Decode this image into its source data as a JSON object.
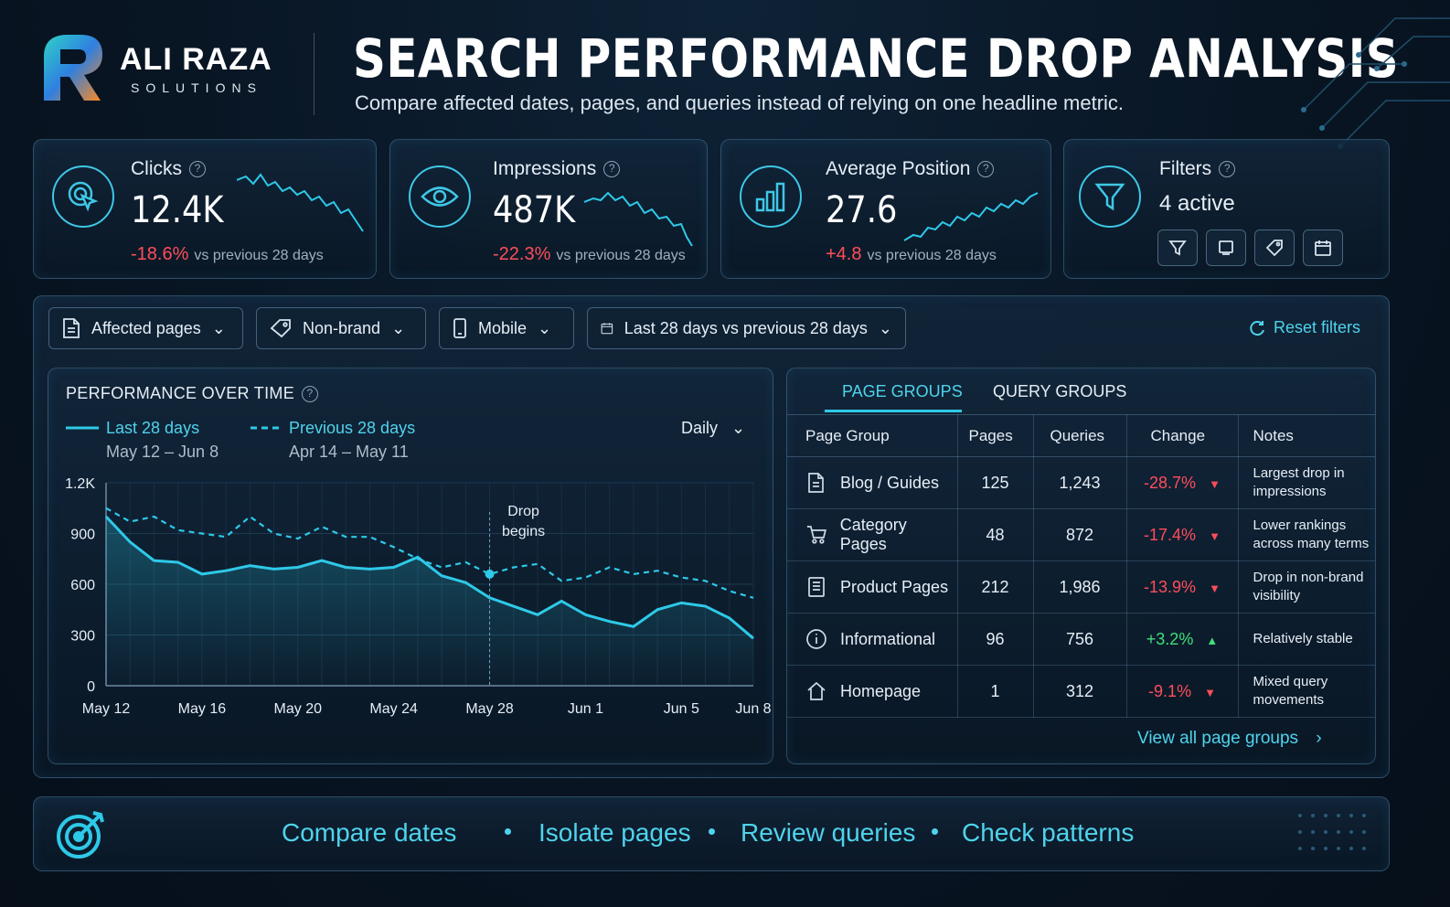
{
  "brand": {
    "name": "ALI RAZA",
    "subtitle": "SOLUTIONS"
  },
  "header": {
    "title": "SEARCH PERFORMANCE DROP ANALYSIS",
    "subtitle": "Compare affected dates, pages, and queries instead of relying on one headline metric."
  },
  "metrics": {
    "clicks": {
      "label": "Clicks",
      "value": "12.4K",
      "delta": "-18.6%",
      "vs": "vs previous 28 days",
      "icon": "click-cursor-icon"
    },
    "impressions": {
      "label": "Impressions",
      "value": "487K",
      "delta": "-22.3%",
      "vs": "vs previous 28 days",
      "icon": "eye-icon"
    },
    "position": {
      "label": "Average Position",
      "value": "27.6",
      "delta": "+4.8",
      "vs": "vs previous 28 days",
      "icon": "bar-chart-icon"
    },
    "filters": {
      "label": "Filters",
      "value": "4 active",
      "icon": "funnel-icon"
    }
  },
  "filters_bar": {
    "pages": "Affected pages",
    "brand": "Non-brand",
    "device": "Mobile",
    "dates": "Last 28 days vs previous 28 days",
    "reset": "Reset filters"
  },
  "chart_panel": {
    "title": "PERFORMANCE OVER TIME",
    "granularity": "Daily",
    "annotation": [
      "Drop",
      "begins"
    ]
  },
  "chart_data": {
    "type": "line",
    "ylim": [
      0,
      1200
    ],
    "yticks": [
      "1.2K",
      "900",
      "600",
      "300",
      "0"
    ],
    "xtick_labels": [
      "May 12",
      "May 16",
      "May 20",
      "May 24",
      "May 28",
      "Jun 1",
      "Jun 5",
      "Jun 8"
    ],
    "series": [
      {
        "name": "Last 28 days",
        "range": "May 12 – Jun 8",
        "style": "solid",
        "values": [
          1000,
          850,
          740,
          730,
          660,
          680,
          710,
          690,
          700,
          740,
          700,
          690,
          700,
          760,
          650,
          610,
          520,
          470,
          420,
          500,
          420,
          380,
          350,
          450,
          490,
          470,
          400,
          280
        ]
      },
      {
        "name": "Previous 28 days",
        "range": "Apr 14 – May 11",
        "style": "dashed",
        "values": [
          1050,
          970,
          1000,
          920,
          900,
          880,
          1000,
          900,
          870,
          940,
          880,
          880,
          820,
          750,
          700,
          730,
          660,
          700,
          720,
          620,
          640,
          700,
          660,
          680,
          640,
          620,
          560,
          520
        ]
      }
    ],
    "annotation_x": "May 28",
    "colors": {
      "line": "#2ec9e8",
      "grid": "#1d3a52"
    }
  },
  "table": {
    "tabs": {
      "page_groups": "PAGE GROUPS",
      "query_groups": "QUERY GROUPS"
    },
    "headers": {
      "group": "Page Group",
      "pages": "Pages",
      "queries": "Queries",
      "change": "Change",
      "notes": "Notes"
    },
    "rows": [
      {
        "group": "Blog / Guides",
        "pages": "125",
        "queries": "1,243",
        "change": "-28.7%",
        "dir": "down",
        "notes1": "Largest drop in",
        "notes2": "impressions",
        "icon": "document-icon"
      },
      {
        "group": "Category Pages",
        "pages": "48",
        "queries": "872",
        "change": "-17.4%",
        "dir": "down",
        "notes1": "Lower rankings",
        "notes2": "across many terms",
        "icon": "cart-icon"
      },
      {
        "group": "Product Pages",
        "pages": "212",
        "queries": "1,986",
        "change": "-13.9%",
        "dir": "down",
        "notes1": "Drop in non-brand",
        "notes2": "visibility",
        "icon": "list-doc-icon"
      },
      {
        "group": "Informational",
        "pages": "96",
        "queries": "756",
        "change": "+3.2%",
        "dir": "up",
        "notes1": "Relatively stable",
        "notes2": "",
        "icon": "info-icon"
      },
      {
        "group": "Homepage",
        "pages": "1",
        "queries": "312",
        "change": "-9.1%",
        "dir": "down",
        "notes1": "Mixed query",
        "notes2": "movements",
        "icon": "home-icon"
      }
    ],
    "view_all": "View all page groups"
  },
  "footer": {
    "items": [
      "Compare  dates",
      "Isolate pages",
      "Review queries",
      "Check patterns"
    ]
  }
}
